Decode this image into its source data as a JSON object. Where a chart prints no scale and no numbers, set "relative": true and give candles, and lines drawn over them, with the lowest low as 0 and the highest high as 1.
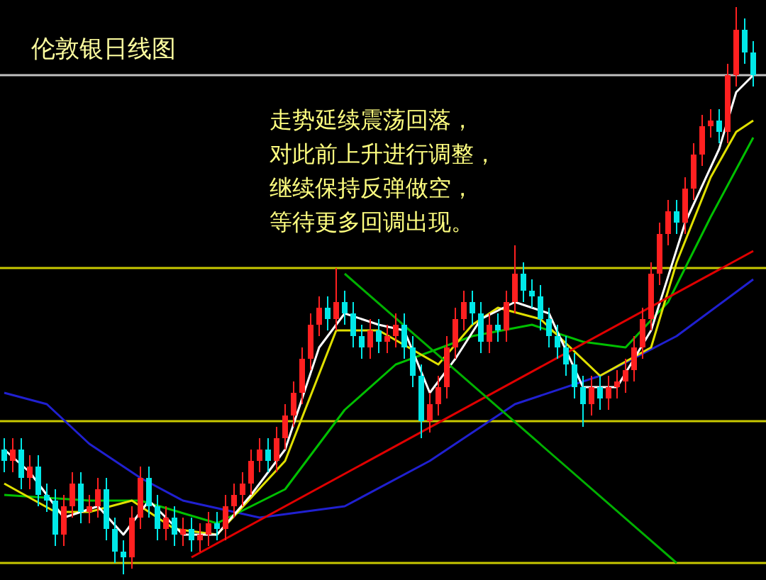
{
  "chart_data": {
    "type": "candlestick",
    "relative": true,
    "title": "伦敦银日线图",
    "annotations": [
      "走势延续震荡回落，",
      "对此前上升进行调整，",
      "继续保持反弹做空，",
      "等待更多回调出现。"
    ],
    "grid": false,
    "categories": [
      null,
      null,
      null,
      null,
      null,
      null,
      null,
      null,
      null,
      null,
      null,
      null,
      null,
      null,
      null,
      null,
      null,
      null,
      null,
      null,
      null,
      null,
      null,
      null,
      null,
      null,
      null,
      null,
      null,
      null,
      null,
      null,
      null,
      null,
      null,
      null,
      null,
      null,
      null,
      null,
      null,
      null,
      null,
      null,
      null,
      null,
      null,
      null,
      null,
      null,
      null,
      null,
      null,
      null,
      null,
      null,
      null,
      null,
      null,
      null,
      null,
      null,
      null,
      null,
      null,
      null,
      null,
      null,
      null,
      null,
      null,
      null,
      null,
      null,
      null,
      null,
      null,
      null,
      null,
      null,
      null,
      null,
      null,
      null,
      null,
      null,
      null,
      null,
      null
    ],
    "ohlc": [
      [
        0.22,
        0.24,
        0.18,
        0.2
      ],
      [
        0.2,
        0.24,
        0.18,
        0.22
      ],
      [
        0.22,
        0.24,
        0.15,
        0.17
      ],
      [
        0.17,
        0.21,
        0.15,
        0.19
      ],
      [
        0.19,
        0.21,
        0.12,
        0.14
      ],
      [
        0.14,
        0.16,
        0.11,
        0.13
      ],
      [
        0.13,
        0.15,
        0.05,
        0.07
      ],
      [
        0.07,
        0.14,
        0.05,
        0.12
      ],
      [
        0.12,
        0.18,
        0.1,
        0.16
      ],
      [
        0.16,
        0.18,
        0.09,
        0.11
      ],
      [
        0.11,
        0.14,
        0.09,
        0.12
      ],
      [
        0.12,
        0.17,
        0.1,
        0.15
      ],
      [
        0.15,
        0.17,
        0.06,
        0.08
      ],
      [
        0.08,
        0.1,
        0.02,
        0.04
      ],
      [
        0.04,
        0.06,
        0,
        0.03
      ],
      [
        0.03,
        0.12,
        0.01,
        0.1
      ],
      [
        0.1,
        0.19,
        0.08,
        0.17
      ],
      [
        0.17,
        0.19,
        0.1,
        0.12
      ],
      [
        0.12,
        0.14,
        0.06,
        0.08
      ],
      [
        0.08,
        0.12,
        0.06,
        0.1
      ],
      [
        0.1,
        0.12,
        0.05,
        0.07
      ],
      [
        0.07,
        0.1,
        0.05,
        0.08
      ],
      [
        0.08,
        0.1,
        0.04,
        0.06
      ],
      [
        0.06,
        0.09,
        0.04,
        0.07
      ],
      [
        0.07,
        0.11,
        0.05,
        0.09
      ],
      [
        0.09,
        0.11,
        0.06,
        0.08
      ],
      [
        0.08,
        0.14,
        0.06,
        0.12
      ],
      [
        0.12,
        0.16,
        0.1,
        0.14
      ],
      [
        0.14,
        0.18,
        0.12,
        0.16
      ],
      [
        0.16,
        0.22,
        0.14,
        0.2
      ],
      [
        0.2,
        0.24,
        0.18,
        0.22
      ],
      [
        0.22,
        0.24,
        0.18,
        0.2
      ],
      [
        0.2,
        0.26,
        0.18,
        0.24
      ],
      [
        0.24,
        0.3,
        0.22,
        0.28
      ],
      [
        0.28,
        0.34,
        0.26,
        0.32
      ],
      [
        0.32,
        0.4,
        0.3,
        0.38
      ],
      [
        0.38,
        0.46,
        0.36,
        0.44
      ],
      [
        0.44,
        0.49,
        0.42,
        0.47
      ],
      [
        0.47,
        0.49,
        0.43,
        0.45
      ],
      [
        0.45,
        0.54,
        0.43,
        0.48
      ],
      [
        0.48,
        0.5,
        0.44,
        0.46
      ],
      [
        0.46,
        0.48,
        0.4,
        0.42
      ],
      [
        0.42,
        0.44,
        0.38,
        0.4
      ],
      [
        0.4,
        0.45,
        0.38,
        0.43
      ],
      [
        0.43,
        0.45,
        0.39,
        0.41
      ],
      [
        0.41,
        0.44,
        0.39,
        0.42
      ],
      [
        0.42,
        0.46,
        0.4,
        0.44
      ],
      [
        0.44,
        0.46,
        0.38,
        0.4
      ],
      [
        0.4,
        0.42,
        0.33,
        0.35
      ],
      [
        0.35,
        0.37,
        0.24,
        0.27
      ],
      [
        0.27,
        0.32,
        0.25,
        0.3
      ],
      [
        0.3,
        0.35,
        0.28,
        0.33
      ],
      [
        0.33,
        0.42,
        0.31,
        0.4
      ],
      [
        0.4,
        0.47,
        0.38,
        0.45
      ],
      [
        0.45,
        0.5,
        0.43,
        0.48
      ],
      [
        0.48,
        0.5,
        0.44,
        0.46
      ],
      [
        0.46,
        0.48,
        0.39,
        0.41
      ],
      [
        0.41,
        0.46,
        0.39,
        0.44
      ],
      [
        0.44,
        0.46,
        0.41,
        0.43
      ],
      [
        0.43,
        0.5,
        0.41,
        0.48
      ],
      [
        0.48,
        0.58,
        0.46,
        0.53
      ],
      [
        0.53,
        0.55,
        0.48,
        0.5
      ],
      [
        0.5,
        0.52,
        0.47,
        0.49
      ],
      [
        0.49,
        0.51,
        0.43,
        0.45
      ],
      [
        0.45,
        0.47,
        0.4,
        0.42
      ],
      [
        0.42,
        0.44,
        0.38,
        0.4
      ],
      [
        0.4,
        0.42,
        0.35,
        0.37
      ],
      [
        0.37,
        0.39,
        0.31,
        0.33
      ],
      [
        0.33,
        0.35,
        0.26,
        0.3
      ],
      [
        0.3,
        0.35,
        0.28,
        0.33
      ],
      [
        0.33,
        0.35,
        0.29,
        0.31
      ],
      [
        0.31,
        0.35,
        0.29,
        0.33
      ],
      [
        0.33,
        0.36,
        0.31,
        0.34
      ],
      [
        0.34,
        0.38,
        0.32,
        0.36
      ],
      [
        0.36,
        0.42,
        0.34,
        0.4
      ],
      [
        0.4,
        0.47,
        0.38,
        0.45
      ],
      [
        0.45,
        0.55,
        0.43,
        0.53
      ],
      [
        0.53,
        0.62,
        0.51,
        0.6
      ],
      [
        0.6,
        0.66,
        0.58,
        0.64
      ],
      [
        0.64,
        0.66,
        0.6,
        0.62
      ],
      [
        0.62,
        0.7,
        0.6,
        0.68
      ],
      [
        0.68,
        0.76,
        0.66,
        0.74
      ],
      [
        0.74,
        0.81,
        0.72,
        0.79
      ],
      [
        0.79,
        0.82,
        0.77,
        0.8
      ],
      [
        0.8,
        0.82,
        0.76,
        0.78
      ],
      [
        0.78,
        0.9,
        0.76,
        0.88
      ],
      [
        0.88,
        1,
        0.86,
        0.96
      ],
      [
        0.96,
        0.98,
        0.9,
        0.92
      ],
      [
        0.92,
        0.94,
        0.86,
        0.88
      ]
    ],
    "series": [
      {
        "type": "line",
        "color": "#2020d0",
        "values": [
          0.32,
          null,
          null,
          null,
          null,
          0.3,
          null,
          null,
          null,
          null,
          0.23,
          null,
          null,
          null,
          null,
          null,
          0.17,
          null,
          null,
          null,
          null,
          0.13,
          null,
          null,
          null,
          null,
          null,
          null,
          null,
          null,
          0.1,
          null,
          null,
          null,
          null,
          null,
          null,
          null,
          null,
          null,
          0.12,
          null,
          null,
          null,
          null,
          null,
          null,
          null,
          null,
          null,
          0.2,
          null,
          null,
          null,
          null,
          null,
          null,
          null,
          null,
          null,
          0.3,
          null,
          null,
          null,
          null,
          null,
          null,
          null,
          null,
          null,
          0.35,
          null,
          null,
          null,
          null,
          null,
          null,
          null,
          null,
          0.42,
          null,
          null,
          null,
          null,
          null,
          null,
          null,
          null,
          0.52
        ]
      },
      {
        "type": "line",
        "color": "#00c000",
        "values": [
          0.14,
          null,
          null,
          null,
          null,
          null,
          null,
          null,
          null,
          null,
          0.13,
          null,
          null,
          null,
          null,
          null,
          0.13,
          null,
          null,
          null,
          null,
          null,
          null,
          null,
          null,
          0.09,
          null,
          null,
          null,
          null,
          null,
          null,
          null,
          0.15,
          null,
          null,
          null,
          null,
          null,
          null,
          0.29,
          null,
          null,
          null,
          null,
          null,
          0.37,
          null,
          null,
          null,
          null,
          null,
          null,
          null,
          null,
          0.42,
          null,
          null,
          null,
          null,
          null,
          null,
          0.44,
          null,
          null,
          null,
          null,
          null,
          0.41,
          null,
          null,
          null,
          null,
          0.4,
          null,
          null,
          null,
          null,
          0.48,
          null,
          null,
          null,
          null,
          0.63,
          null,
          null,
          null,
          null,
          0.77
        ]
      },
      {
        "type": "line",
        "color": "#e0e000",
        "values": [
          0.16,
          null,
          null,
          null,
          null,
          null,
          0.11,
          null,
          null,
          null,
          0.11,
          null,
          null,
          null,
          null,
          0.13,
          null,
          null,
          null,
          null,
          0.08,
          null,
          null,
          null,
          null,
          0.07,
          null,
          null,
          null,
          null,
          null,
          null,
          null,
          0.2,
          null,
          null,
          null,
          null,
          null,
          0.43,
          null,
          null,
          null,
          null,
          0.43,
          null,
          null,
          null,
          null,
          null,
          null,
          0.37,
          null,
          null,
          null,
          0.44,
          null,
          null,
          0.47,
          null,
          null,
          null,
          null,
          0.45,
          null,
          null,
          null,
          null,
          null,
          null,
          0.35,
          null,
          null,
          null,
          null,
          null,
          0.4,
          null,
          null,
          0.55,
          null,
          null,
          null,
          0.7,
          null,
          null,
          0.78,
          null,
          0.8
        ]
      },
      {
        "type": "line",
        "color": "#ffffff",
        "values": [
          0.22,
          null,
          null,
          0.18,
          null,
          null,
          null,
          0.1,
          null,
          null,
          null,
          0.12,
          null,
          null,
          0.07,
          null,
          null,
          0.13,
          null,
          null,
          null,
          0.07,
          null,
          null,
          null,
          0.07,
          null,
          null,
          null,
          0.14,
          null,
          null,
          null,
          0.22,
          null,
          null,
          null,
          0.4,
          null,
          null,
          0.46,
          null,
          null,
          null,
          0.44,
          null,
          null,
          0.43,
          null,
          null,
          0.32,
          null,
          null,
          0.38,
          null,
          null,
          0.45,
          null,
          null,
          null,
          0.48,
          null,
          null,
          null,
          0.46,
          null,
          null,
          null,
          0.33,
          null,
          null,
          null,
          0.33,
          null,
          null,
          null,
          0.43,
          null,
          null,
          null,
          0.62,
          null,
          null,
          null,
          0.75,
          null,
          0.85,
          null,
          0.88
        ]
      },
      {
        "type": "line",
        "color": "#e00000",
        "values": [
          null,
          null,
          null,
          null,
          null,
          null,
          null,
          null,
          null,
          null,
          null,
          null,
          null,
          null,
          null,
          null,
          null,
          null,
          null,
          null,
          null,
          null,
          0.03,
          null,
          null,
          null,
          null,
          null,
          null,
          null,
          null,
          null,
          null,
          null,
          null,
          null,
          null,
          null,
          null,
          null,
          null,
          null,
          null,
          null,
          null,
          null,
          null,
          null,
          null,
          null,
          null,
          null,
          null,
          null,
          null,
          null,
          null,
          null,
          null,
          null,
          null,
          null,
          null,
          null,
          null,
          null,
          null,
          null,
          null,
          null,
          null,
          null,
          null,
          null,
          null,
          null,
          null,
          null,
          null,
          null,
          null,
          null,
          null,
          null,
          null,
          null,
          null,
          null,
          0.57
        ]
      },
      {
        "type": "line",
        "color": "#00b000",
        "values": [
          null,
          null,
          null,
          null,
          null,
          null,
          null,
          null,
          null,
          null,
          null,
          null,
          null,
          null,
          null,
          null,
          null,
          null,
          null,
          null,
          null,
          null,
          null,
          null,
          null,
          null,
          null,
          null,
          null,
          null,
          null,
          null,
          null,
          null,
          null,
          null,
          null,
          null,
          null,
          null,
          0.53,
          null,
          null,
          null,
          null,
          null,
          null,
          null,
          null,
          null,
          null,
          null,
          null,
          null,
          null,
          null,
          null,
          null,
          null,
          null,
          null,
          null,
          null,
          null,
          null,
          null,
          null,
          null,
          null,
          null,
          null,
          null,
          null,
          null,
          null,
          null,
          null,
          null,
          null,
          0.02,
          null,
          null,
          null,
          null,
          null,
          null,
          null,
          null,
          null
        ]
      }
    ],
    "ref_lines": [
      {
        "axis": "y",
        "value": 0.88,
        "color": "#c0c0c0"
      },
      {
        "axis": "y",
        "value": 0.54,
        "color": "#c8c800"
      },
      {
        "axis": "y",
        "value": 0.27,
        "color": "#c8c800"
      },
      {
        "axis": "y",
        "value": 0.02,
        "color": "#c8c800"
      }
    ]
  }
}
